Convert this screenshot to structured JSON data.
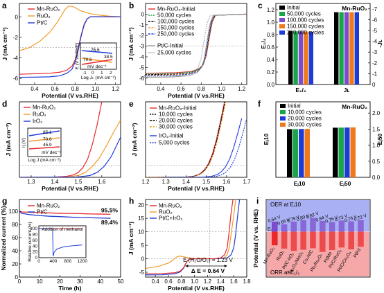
{
  "colors": {
    "mn": "#e8282b",
    "ruo2": "#f39b2c",
    "ptc": "#1f3bd6",
    "iro2": "#1f3bd6",
    "green": "#19a64b",
    "black": "#000000",
    "pink": "#f6a7a8",
    "lav": "#aab0f4",
    "ruo2_bar": "#ee7a1c",
    "violet": "#7b4ccc"
  },
  "chart_data": [
    {
      "id": "a",
      "type": "line",
      "panel_label": "a",
      "xlabel": "Potential (V vs.RHE)",
      "ylabel": "J (mA cm⁻²)",
      "xlim": [
        0.25,
        1.25
      ],
      "ylim": [
        -6.6,
        1.3
      ],
      "xticks": [
        0.4,
        0.6,
        0.8,
        1.0,
        1.2
      ],
      "yticks": [
        0,
        -2,
        -4,
        -6
      ],
      "hline": -3,
      "series": [
        {
          "name": "Mn-RuO₂",
          "color": "mn",
          "x": [
            0.25,
            0.4,
            0.55,
            0.65,
            0.72,
            0.77,
            0.8,
            0.83,
            0.86,
            0.89,
            0.92,
            0.95,
            1.25
          ],
          "y": [
            -5.6,
            -5.55,
            -5.5,
            -5.4,
            -5.2,
            -4.8,
            -4.2,
            -3.1,
            -1.8,
            -0.7,
            -0.2,
            0,
            0
          ]
        },
        {
          "name": "RuO₂",
          "color": "ruo2",
          "x": [
            0.25,
            0.35,
            0.45,
            0.55,
            0.62,
            0.67,
            0.7,
            0.73,
            0.76,
            0.8,
            0.85,
            0.95,
            1.05,
            1.15,
            1.25
          ],
          "y": [
            -3.3,
            -3.0,
            -2.4,
            -1.5,
            -0.6,
            0.2,
            0.7,
            1.0,
            1.05,
            0.9,
            0.6,
            0.3,
            0.15,
            0.05,
            0
          ]
        },
        {
          "name": "Pt/C",
          "color": "ptc",
          "x": [
            0.25,
            0.4,
            0.55,
            0.65,
            0.72,
            0.77,
            0.8,
            0.83,
            0.86,
            0.89,
            0.92,
            0.95,
            1.25
          ],
          "y": [
            -5.9,
            -5.88,
            -5.85,
            -5.75,
            -5.5,
            -5.1,
            -4.4,
            -3.3,
            -1.9,
            -0.8,
            -0.2,
            0,
            0
          ]
        }
      ],
      "inset": {
        "xlabel": "Log Jₖ (mA cm⁻²)",
        "ylabel": "E (V vs.RHE)",
        "unit_label": "mV dec⁻¹",
        "xticks": [
          "-1",
          "0",
          "1",
          "2"
        ],
        "slopes": [
          {
            "label": "76.6",
            "color": "ptc"
          },
          {
            "label": "70.6",
            "color": "ruo2"
          },
          {
            "label": "38.5",
            "color": "mn"
          }
        ]
      }
    },
    {
      "id": "b",
      "type": "line",
      "panel_label": "b",
      "xlabel": "Potential (V vs.RHE)",
      "ylabel": "J (mA cm⁻²)",
      "xlim": [
        0.25,
        1.25
      ],
      "ylim": [
        -6.6,
        1.0
      ],
      "xticks": [
        0.4,
        0.6,
        0.8,
        1.0,
        1.2
      ],
      "yticks": [
        0,
        -1,
        -2,
        -3,
        -4,
        -5,
        -6
      ],
      "hline": -3,
      "series": [
        {
          "name": "Mn-RuO₂-Initial",
          "color": "mn",
          "dash": "",
          "shift": 0.0,
          "jl": -5.55
        },
        {
          "name": "50,000 cycles",
          "color": "green",
          "dash": "2,1.5",
          "shift": -0.003,
          "jl": -5.6
        },
        {
          "name": "100,000 cycles",
          "color": "black",
          "dash": "3,1.5",
          "shift": -0.006,
          "jl": -5.68
        },
        {
          "name": "150,000 cycles",
          "color": "ruo2",
          "dash": "3,1.5",
          "shift": -0.009,
          "jl": -5.75
        },
        {
          "name": "250,000 cycles",
          "color": "ptc",
          "dash": "3,1.5",
          "shift": -0.012,
          "jl": -5.8
        },
        {
          "name": "Pt/C-Initial",
          "color": "#999999",
          "dash": "",
          "shift": -0.02,
          "jl": -5.95
        },
        {
          "name": "25,000 cycles",
          "color": "#999999",
          "dash": "1.5,1.5",
          "shift": -0.05,
          "jl": -5.9
        }
      ],
      "ref_curve": {
        "x": [
          0.25,
          0.55,
          0.7,
          0.78,
          0.82,
          0.85,
          0.87,
          0.89,
          0.91,
          0.94,
          1.25
        ],
        "frac": [
          1,
          0.99,
          0.97,
          0.92,
          0.85,
          0.7,
          0.5,
          0.3,
          0.13,
          0.02,
          0
        ]
      }
    },
    {
      "id": "c",
      "type": "bar",
      "panel_label": "c",
      "corner_label": "Mn-RuO₂",
      "categories": [
        "E₁/₂",
        "Jʟ"
      ],
      "ylabel_left": "E₁/₂",
      "ylabel_right": "-Jʟ",
      "yticks": [
        0.0,
        0.2,
        0.4,
        0.6,
        0.8,
        1.0,
        1.2
      ],
      "ylim": [
        0,
        1.3
      ],
      "yticks_right": [
        0,
        -1,
        -2,
        -3,
        -4,
        -5,
        -6,
        -7
      ],
      "series": [
        {
          "name": "Initial",
          "color": "black",
          "values": [
            0.855,
            1.16
          ]
        },
        {
          "name": "50,000 cycles",
          "color": "green",
          "values": [
            0.853,
            1.16
          ]
        },
        {
          "name": "100,000 cycles",
          "color": "violet",
          "values": [
            0.852,
            1.16
          ]
        },
        {
          "name": "150,000 cycles",
          "color": "ruo2_bar",
          "values": [
            0.85,
            1.16
          ]
        },
        {
          "name": "250,000 cycles",
          "color": "ptc",
          "values": [
            0.846,
            1.16
          ]
        }
      ]
    },
    {
      "id": "d",
      "type": "line",
      "panel_label": "d",
      "xlabel": "Potential (V vs.RHE)",
      "ylabel": "J (mA cm⁻²)",
      "xlim": [
        1.25,
        1.68
      ],
      "ylim": [
        0,
        62
      ],
      "xticks": [
        1.3,
        1.4,
        1.5,
        1.6
      ],
      "yticks": [],
      "hline": 10,
      "series": [
        {
          "name": "Mn-RuO₂",
          "color": "mn",
          "x": [
            1.25,
            1.4,
            1.45,
            1.48,
            1.5,
            1.52,
            1.54,
            1.56,
            1.58,
            1.6
          ],
          "y": [
            0,
            0.2,
            0.8,
            2,
            4,
            8,
            15,
            27,
            43,
            62
          ]
        },
        {
          "name": "RuO₂",
          "color": "ruo2",
          "x": [
            1.25,
            1.45,
            1.5,
            1.53,
            1.56,
            1.59,
            1.62,
            1.65,
            1.68
          ],
          "y": [
            0,
            0.3,
            1.5,
            4,
            9,
            16,
            26,
            37,
            47
          ]
        },
        {
          "name": "IrO₂",
          "color": "iro2",
          "x": [
            1.25,
            1.5,
            1.55,
            1.58,
            1.61,
            1.64,
            1.66,
            1.68
          ],
          "y": [
            0,
            0.3,
            1.5,
            4,
            9,
            17,
            25,
            33
          ]
        }
      ],
      "inset": {
        "xlabel": "Log J (mA cm⁻²)",
        "ylabel": "η (V)",
        "unit_label": "mV dec⁻¹",
        "slopes": [
          {
            "label": "85.1",
            "color": "iro2"
          },
          {
            "label": "70.6",
            "color": "ruo2"
          },
          {
            "label": "45.9",
            "color": "mn"
          }
        ]
      }
    },
    {
      "id": "e",
      "type": "line",
      "panel_label": "e",
      "xlabel": "Potential (V vs.RHE)",
      "ylabel": "J (mA cm⁻²)",
      "xlim": [
        1.2,
        1.7
      ],
      "ylim": [
        0,
        62
      ],
      "xticks": [
        1.2,
        1.3,
        1.4,
        1.5,
        1.6,
        1.7
      ],
      "yticks": [],
      "hline": 10,
      "series": [
        {
          "name": "Mn-RuO₂-Initial",
          "color": "mn",
          "dash": "",
          "shift": 0.0
        },
        {
          "name": "10,000 cycles",
          "color": "black",
          "dash": "2,1.5",
          "shift": 0.002
        },
        {
          "name": "20,000 cycles",
          "color": "black",
          "dash": "3,1.5",
          "shift": 0.004
        },
        {
          "name": "30,000 cycles",
          "color": "ruo2",
          "dash": "3,1.5",
          "shift": 0.006
        },
        {
          "name": "IrO₂-Initial",
          "color": "iro2",
          "dash": "",
          "shift": 0.085
        },
        {
          "name": "5,000 cycles",
          "color": "iro2",
          "dash": "2,1.5",
          "shift": 0.11
        }
      ],
      "ref_curve": {
        "x": [
          1.2,
          1.4,
          1.44,
          1.47,
          1.49,
          1.51,
          1.53,
          1.55,
          1.57,
          1.59
        ],
        "y": [
          0,
          0.2,
          1,
          3,
          6,
          11,
          19,
          31,
          46,
          62
        ]
      }
    },
    {
      "id": "f",
      "type": "bar",
      "panel_label": "f",
      "corner_label": "Mn-RuO₂",
      "categories": [
        "Eⱼ10",
        "Eⱼ50"
      ],
      "ylabel_left": "Eⱼ10",
      "ylabel_right": "Eⱼ50",
      "ylim": [
        0,
        2.35
      ],
      "yticks_right": [
        0.0,
        0.5,
        1.0,
        1.5,
        2.0
      ],
      "series": [
        {
          "name": "Initial",
          "color": "black",
          "values": [
            1.5,
            1.545
          ]
        },
        {
          "name": "10,000 cycles",
          "color": "green",
          "values": [
            1.5,
            1.548
          ]
        },
        {
          "name": "20,000 cycles",
          "color": "ptc",
          "values": [
            1.505,
            1.55
          ]
        },
        {
          "name": "30,000 cycles",
          "color": "ruo2_bar",
          "values": [
            1.507,
            1.555
          ]
        }
      ]
    },
    {
      "id": "g",
      "type": "line",
      "panel_label": "g",
      "xlabel": "Time (h)",
      "ylabel": "Normalized current (%)",
      "xlim": [
        0,
        50
      ],
      "ylim": [
        0,
        118
      ],
      "xticks": [
        0,
        10,
        20,
        30,
        40,
        50
      ],
      "yticks": [
        0,
        20,
        40,
        60,
        80,
        100
      ],
      "series": [
        {
          "name": "Mn-RuO₂",
          "color": "mn",
          "end_label": "95.5%",
          "x": [
            0,
            1,
            5,
            10,
            15,
            20,
            25,
            30,
            35,
            40,
            45
          ],
          "y": [
            100,
            99,
            98.5,
            98,
            97.5,
            97,
            96.8,
            96.5,
            96,
            95.8,
            95.5
          ]
        },
        {
          "name": "Pt/C",
          "color": "ptc",
          "end_label": "89.4%",
          "x": [
            0,
            1,
            5,
            10,
            15,
            20,
            25,
            30,
            35,
            40,
            45
          ],
          "y": [
            100,
            97,
            95,
            93.5,
            92.5,
            92,
            91.2,
            90.5,
            90.2,
            89.8,
            89.4
          ]
        }
      ],
      "inset": {
        "title": "Addition of methanol",
        "ylabel": "Relative current (%)",
        "xticks": [
          "0",
          "400",
          "800",
          "1200"
        ],
        "yticks": [
          "0",
          "20",
          "40",
          "60",
          "80",
          "100"
        ],
        "annotation": "Addition of methanol"
      }
    },
    {
      "id": "h",
      "type": "line",
      "panel_label": "h",
      "xlabel": "Potential (V vs.RHE)",
      "ylabel": "J (mA cm⁻²)",
      "xlim": [
        0.25,
        1.8
      ],
      "ylim": [
        -6.8,
        22
      ],
      "xticks": [
        0.4,
        0.6,
        0.8,
        1.0,
        1.2,
        1.4,
        1.6,
        1.8
      ],
      "yticks": [
        -5,
        0,
        5,
        10,
        15,
        20
      ],
      "hline": 10,
      "annotation_E": "E (H₂O/O₂) = 1.23 V",
      "annotation_dE": "Δ E = 0.64 V",
      "series": [
        {
          "name": "Mn-RuO₂",
          "color": "mn"
        },
        {
          "name": "RuO₂",
          "color": "ruo2"
        },
        {
          "name": "Pt/C+IrO₂",
          "color": "ptc"
        }
      ]
    },
    {
      "id": "i",
      "type": "bar",
      "panel_label": "i",
      "ylabel": "Potential (V vs. RHE)",
      "top_label": "OER at Eⱼ10",
      "bottom_label": "ORR at E₁/₂",
      "ref_label": "E₀",
      "ylim": [
        0.0,
        2.1
      ],
      "categories": [
        "Mn-RuO₂",
        "RuO₂",
        "Pt/C-IrO₂",
        "Fe₃O₄/MnO₂",
        "Co₄N/C",
        "Pb₂Ru₂O₇",
        "PdMn",
        "Pt/C/RuO₂",
        "Pt/C/Co₃O₄",
        "PtPd"
      ],
      "gap_labels": [
        "0.64 V",
        "0.66 V",
        "0.79 V",
        "0.80 V",
        "0.82 V",
        "0.84 V",
        "0.76 V",
        "0.73 V",
        "0.76 V",
        "0.72 V"
      ],
      "orr": [
        0.86,
        0.77,
        0.71,
        0.74,
        0.78,
        0.68,
        0.73,
        0.8,
        0.75,
        0.82
      ],
      "oer": [
        1.5,
        1.43,
        1.5,
        1.54,
        1.6,
        1.52,
        1.49,
        1.53,
        1.51,
        1.54
      ]
    }
  ],
  "legends": {
    "a": [
      "Mn-RuO₂",
      "RuO₂",
      "Pt/C"
    ],
    "d": [
      "Mn-RuO₂",
      "RuO₂",
      "IrO₂"
    ],
    "g": [
      "Mn-RuO₂",
      "Pt/C"
    ],
    "h": [
      "Mn-RuO₂",
      "RuO₂",
      "Pt/C+IrO₂"
    ]
  }
}
